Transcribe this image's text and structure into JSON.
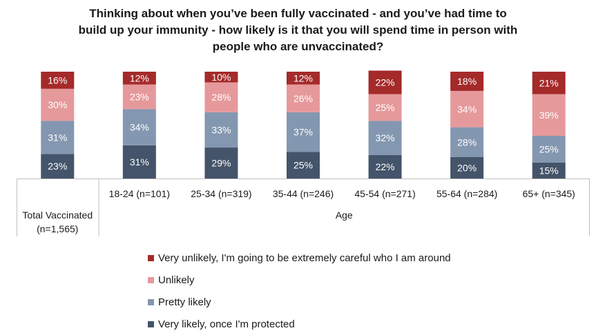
{
  "chart_data": {
    "type": "bar",
    "stacked": true,
    "title_lines": [
      "Thinking about when you’ve been fully vaccinated - and you’ve had time to",
      "build up your immunity - how likely is it that you will spend time in person with",
      "people who are unvaccinated?"
    ],
    "categories": [
      "Total Vaccinated (n=1,565)",
      "18-24 (n=101)",
      "25-34 (n=319)",
      "35-44 (n=246)",
      "45-54 (n=271)",
      "55-64 (n=284)",
      "65+ (n=345)"
    ],
    "first_category_lines": [
      "Total Vaccinated",
      "(n=1,565)"
    ],
    "group_label": "Age",
    "series": [
      {
        "name": "Very likely, once I'm protected",
        "color": "#44546a",
        "values": [
          23,
          31,
          29,
          25,
          22,
          20,
          15
        ]
      },
      {
        "name": "Pretty likely",
        "color": "#8497b0",
        "values": [
          31,
          34,
          33,
          37,
          32,
          28,
          25
        ]
      },
      {
        "name": "Unlikely",
        "color": "#e6999b",
        "values": [
          30,
          23,
          28,
          26,
          25,
          34,
          39
        ]
      },
      {
        "name": "Very unlikely, I'm going to be extremely careful who I am around",
        "color": "#a52a2a",
        "values": [
          16,
          12,
          10,
          12,
          22,
          18,
          21
        ]
      }
    ],
    "legend_order": [
      3,
      2,
      1,
      0
    ],
    "value_suffix": "%",
    "legend_position": "bottom",
    "grid": false
  }
}
